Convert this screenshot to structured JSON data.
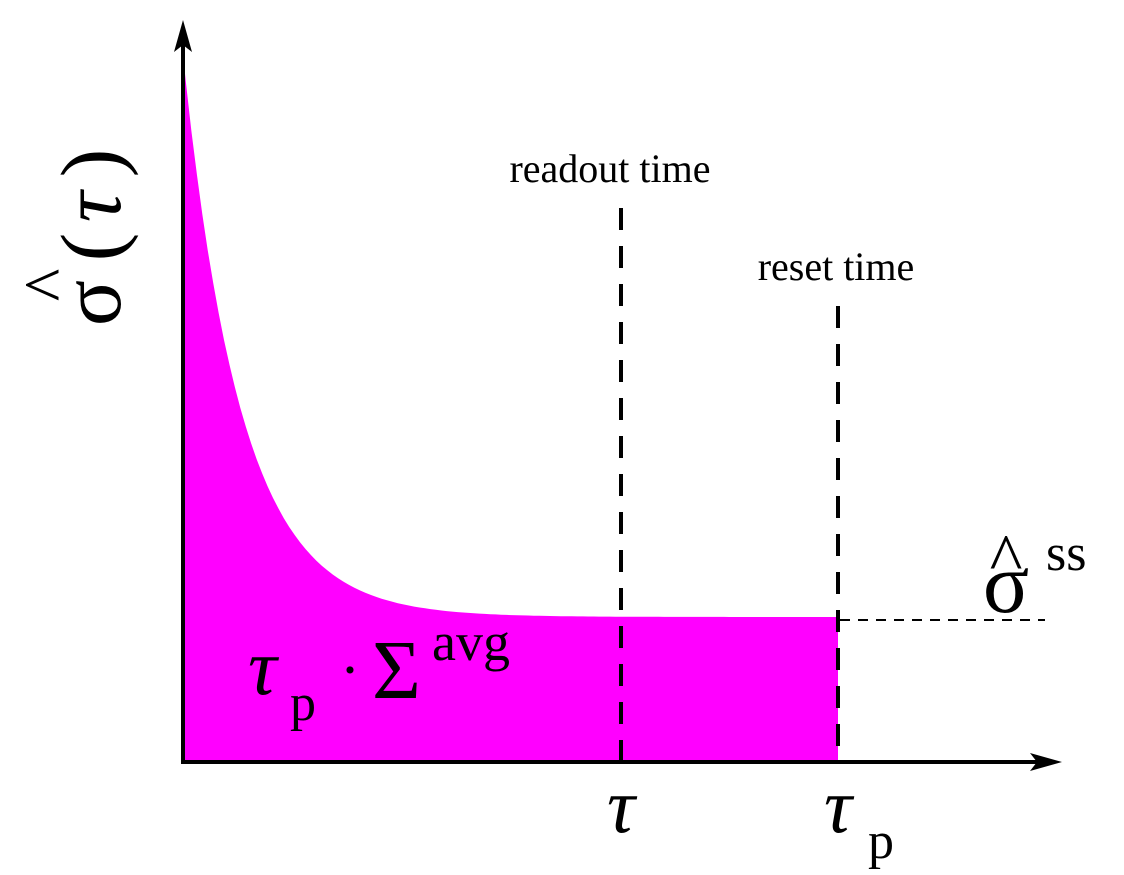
{
  "y_axis": {
    "label_hat": "^",
    "label_symbol": "σ",
    "label_open": "(",
    "label_arg": "τ",
    "label_close": ")"
  },
  "annotations": {
    "readout_label": "readout time",
    "reset_label": "reset time",
    "area_label_base": "τ",
    "area_label_base_sub": "p",
    "area_label_dot": "·",
    "area_label_sum": "Σ",
    "area_label_sup": "avg",
    "steady_state_hat": "^",
    "steady_state_symbol": "σ",
    "steady_state_sup": "ss"
  },
  "x_ticks": {
    "tau": "τ",
    "tau_p_base": "τ",
    "tau_p_sub": "p"
  },
  "colors": {
    "fill": "#ff00ff",
    "ink": "#000000",
    "background": "#ffffff"
  }
}
